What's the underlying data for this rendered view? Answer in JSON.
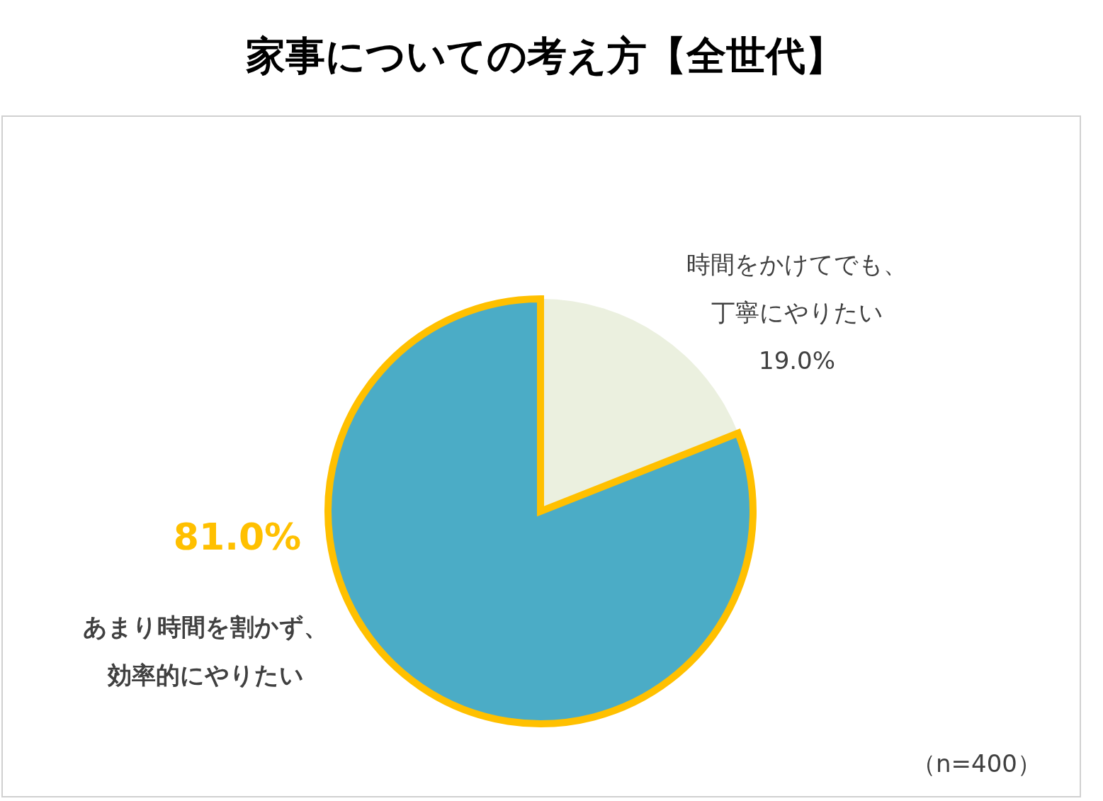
{
  "chart_data": {
    "type": "pie",
    "title": "家事についての考え方【全世代】",
    "categories": [
      "時間をかけてでも、丁寧にやりたい",
      "あまり時間を割かず、効率的にやりたい"
    ],
    "values": [
      19.0,
      81.0
    ],
    "colors": [
      "#ebf0df",
      "#4bacc6"
    ],
    "value_labels": [
      "19.0%",
      "81.0%"
    ],
    "annotations": [
      "（n=400）"
    ]
  }
}
